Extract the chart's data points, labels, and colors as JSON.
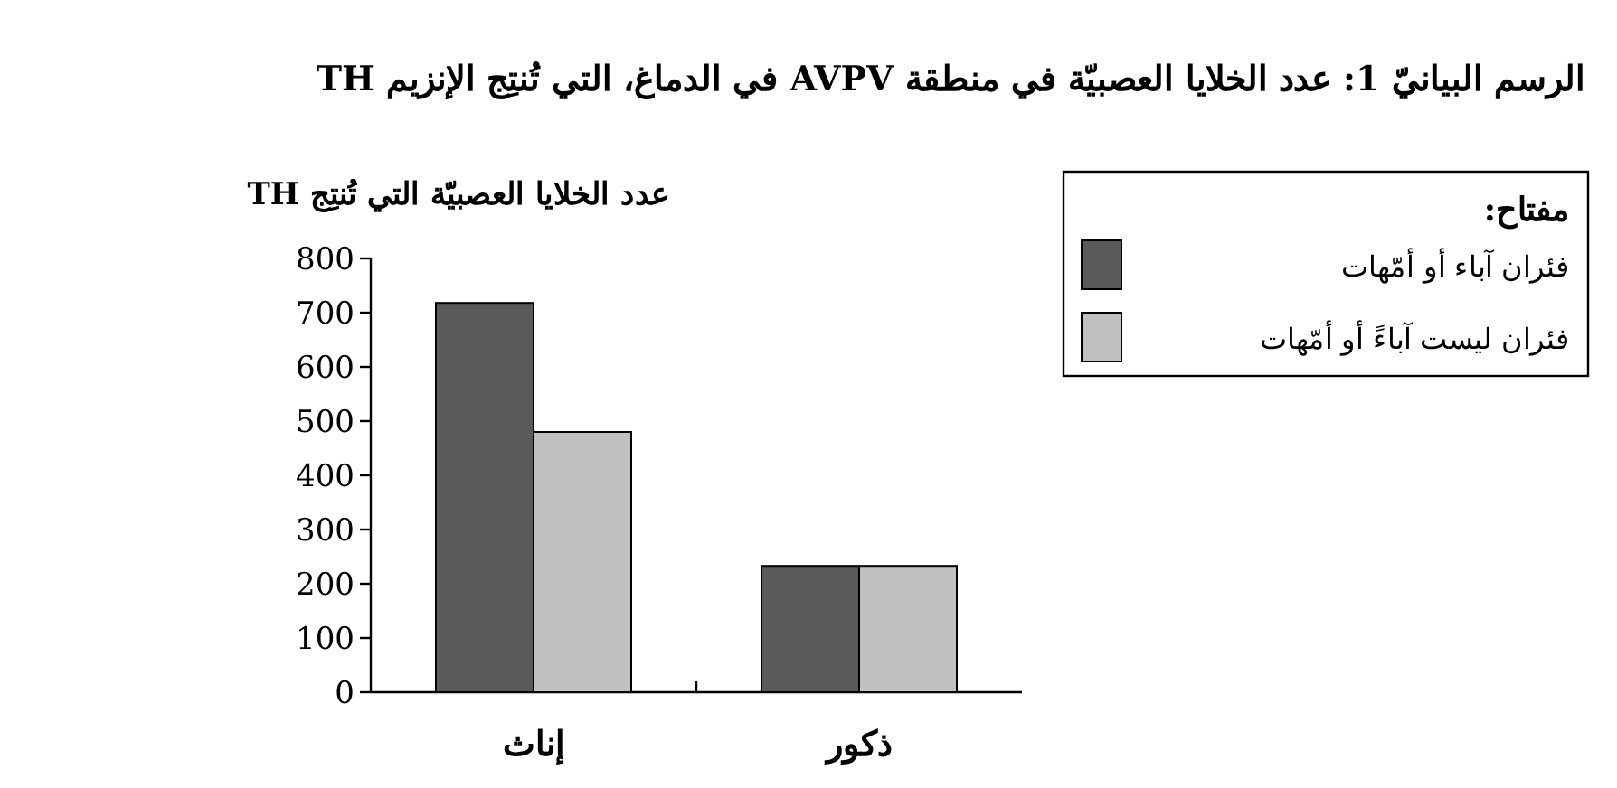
{
  "chart_data": {
    "type": "bar",
    "title": "الرسم البيانيّ 1:  عدد الخلايا العصبيّة في منطقة AVPV في الدماغ، التي تُنتِج الإنزيم TH",
    "ylabel": "عدد الخلايا العصبيّة التي تُنتِج TH",
    "legend_title": "مفتاح:",
    "categories": [
      "إناث",
      "ذكور"
    ],
    "series": [
      {
        "name": "فئران آباء أو أمّهات",
        "color": "#5a5a5a",
        "values": [
          718,
          233
        ]
      },
      {
        "name": "فئران ليست آباءً أو أمّهات",
        "color": "#c0c0c0",
        "values": [
          480,
          233
        ]
      }
    ],
    "ylim": [
      0,
      800
    ],
    "yticks": [
      0,
      100,
      200,
      300,
      400,
      500,
      600,
      700,
      800
    ],
    "legend": "right"
  }
}
